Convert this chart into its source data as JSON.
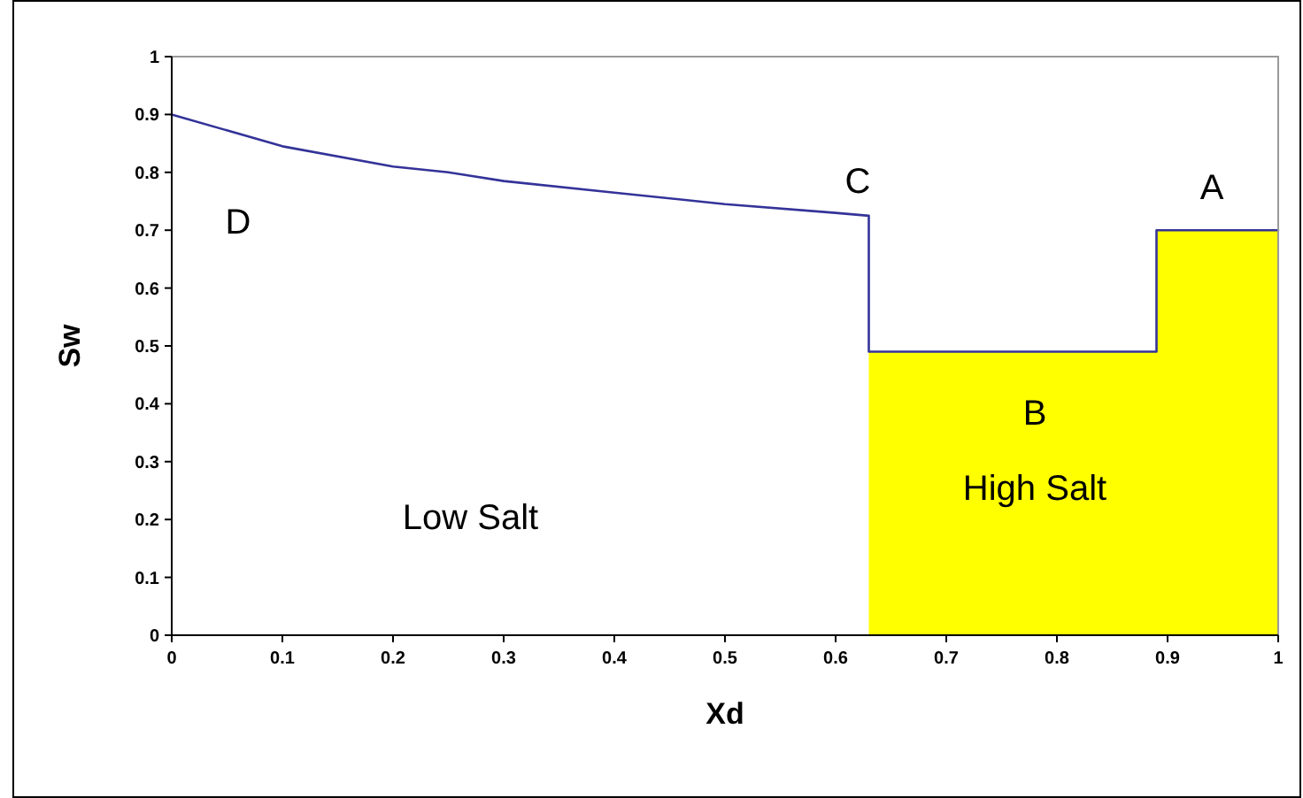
{
  "chart_data": {
    "type": "line",
    "xlabel": "Xd",
    "ylabel": "Sw",
    "xlim": [
      0,
      1
    ],
    "ylim": [
      0,
      1
    ],
    "xticks": [
      0,
      0.1,
      0.2,
      0.3,
      0.4,
      0.5,
      0.6,
      0.7,
      0.8,
      0.9,
      1
    ],
    "yticks": [
      0,
      0.1,
      0.2,
      0.3,
      0.4,
      0.5,
      0.6,
      0.7,
      0.8,
      0.9,
      1
    ],
    "grid": false,
    "line_style": "solid",
    "series": [
      {
        "type": "area",
        "color": "#ffff00",
        "x": [
          0.63,
          0.63,
          0.89,
          0.89,
          1,
          1
        ],
        "values": [
          0,
          0.49,
          0.49,
          0.7,
          0.7,
          0
        ]
      },
      {
        "color": "#333399",
        "x": [
          0,
          0.1,
          0.2,
          0.25,
          0.3,
          0.4,
          0.5,
          0.6,
          0.63,
          0.63,
          0.89,
          0.89,
          1
        ],
        "values": [
          0.9,
          0.845,
          0.81,
          0.8,
          0.785,
          0.765,
          0.745,
          0.73,
          0.725,
          0.49,
          0.49,
          0.7,
          0.7
        ]
      }
    ],
    "annotations": [
      "D",
      "C",
      "A",
      "B",
      "High Salt",
      "Low Salt"
    ]
  }
}
